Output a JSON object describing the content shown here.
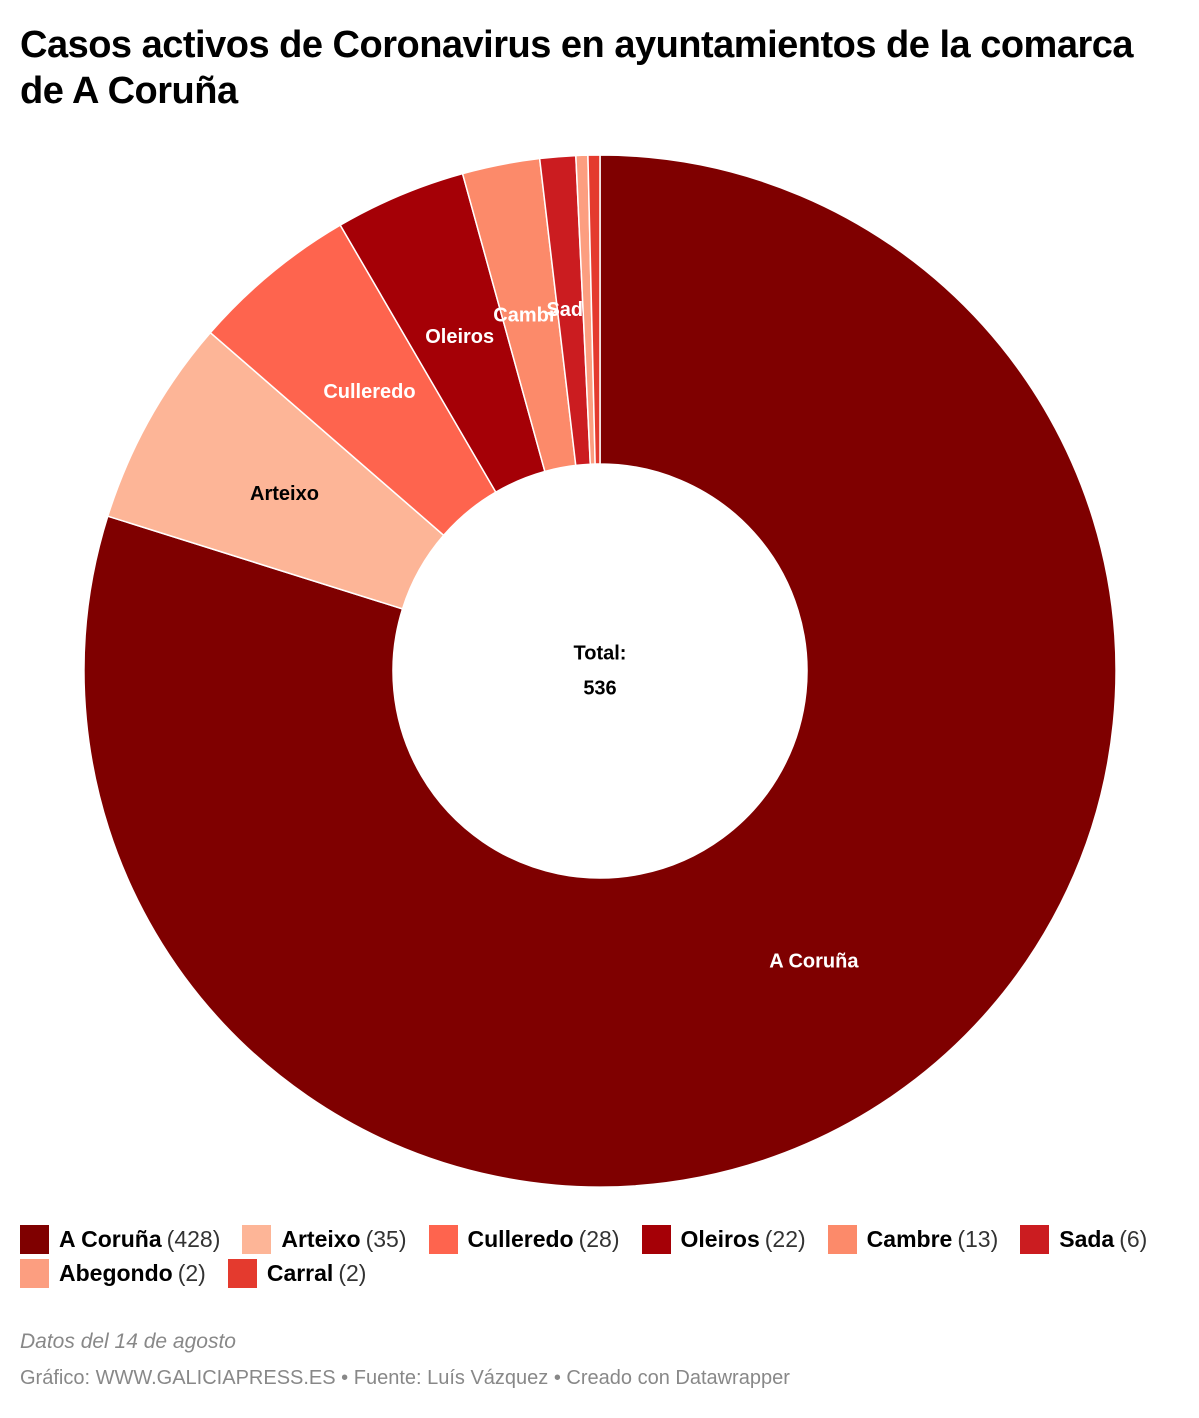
{
  "chart_data": {
    "type": "donut",
    "title": "Casos activos de Coronavirus en ayuntamientos de la comarca de A Coruña",
    "categories": [
      "A Coruña",
      "Arteixo",
      "Culleredo",
      "Oleiros",
      "Cambre",
      "Sada",
      "Abegondo",
      "Carral"
    ],
    "values": [
      428,
      35,
      28,
      22,
      13,
      6,
      2,
      2
    ],
    "value_labels": [
      "(428)",
      "(35)",
      "(28)",
      "(22)",
      "(13)",
      "(6)",
      "(2)",
      "(2)"
    ],
    "colors": [
      "#7f0000",
      "#fdb597",
      "#fe644e",
      "#a50006",
      "#fc8a6a",
      "#cb1c20",
      "#fc9e80",
      "#e43a2e"
    ],
    "slice_label_colors": [
      "#ffffff",
      "#000000",
      "#ffffff",
      "#ffffff",
      "#ffffff",
      "#ffffff",
      "#ffffff",
      "#ffffff"
    ],
    "center_label": "Total:",
    "total": 536,
    "notes": "Datos del 14 de agosto",
    "footer": "Gráfico: WWW.GALICIAPRESS.ES • Fuente: Luís Vázquez • Creado con Datawrapper"
  }
}
